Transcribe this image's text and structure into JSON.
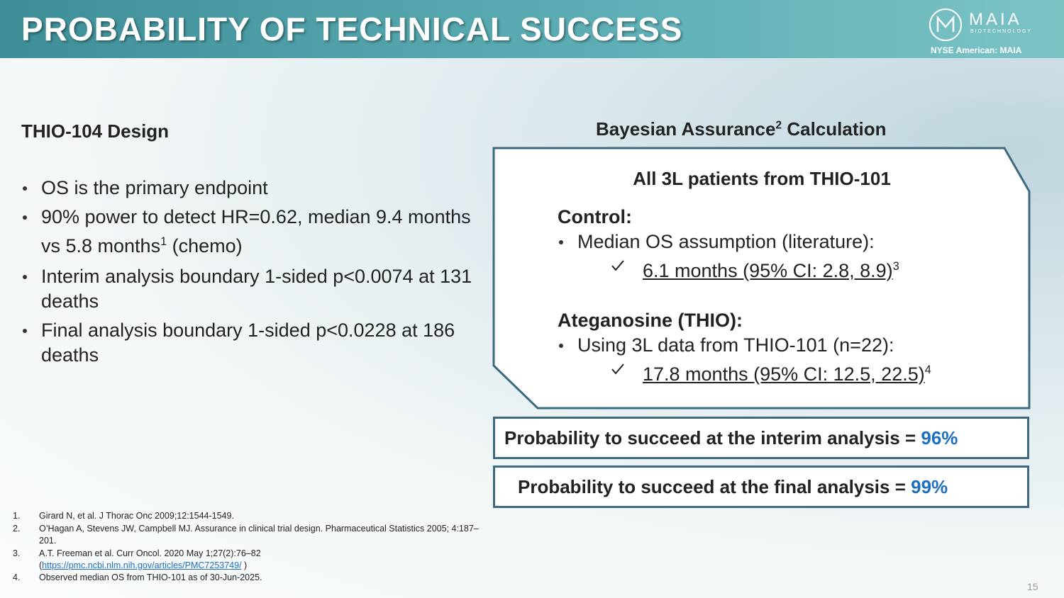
{
  "header": {
    "title": "PROBABILITY OF TECHNICAL SUCCESS",
    "logo_name": "MAIA",
    "logo_sub": "BIOTECHNOLOGY",
    "exchange": "NYSE American: MAIA"
  },
  "left": {
    "heading": "THIO-104 Design",
    "bullets": [
      [
        "OS is the primary endpoint"
      ],
      [
        "90% power to detect HR=0.62, median 9.4 months vs 5.8 months",
        "1",
        "(chemo)"
      ],
      [
        "Interim analysis boundary 1-sided p<0.0074 at 131 deaths"
      ],
      [
        "Final analysis boundary 1-sided p<0.0228 at 186 deaths"
      ]
    ]
  },
  "right": {
    "heading": [
      "Bayesian Assurance",
      "2",
      "Calculation"
    ],
    "box_title": "All 3L patients from THIO-101",
    "sections": [
      {
        "label": "Control:",
        "bullet": "Median OS assumption (literature):",
        "check": "6.1 months (95% CI:  2.8, 8.9)",
        "ref": "3"
      },
      {
        "label": "Ateganosine (THIO):",
        "bullet": "Using 3L data from THIO-101 (n=22):",
        "check": "17.8 months (95% CI: 12.5, 22.5)",
        "ref": "4"
      }
    ],
    "results": [
      {
        "text": "Probability to succeed at the interim analysis =",
        "value": "96%"
      },
      {
        "text": "Probability to succeed at the final analysis =",
        "value": "99%"
      }
    ]
  },
  "footnotes": [
    {
      "num": "1.",
      "lines": [
        "Girard N, et al. J Thorac Onc 2009;12:1544-1549."
      ]
    },
    {
      "num": "2.",
      "lines": [
        "O’Hagan A, Stevens JW, Campbell MJ. Assurance in clinical trial design. Pharmaceutical Statistics 2005; 4:187–201."
      ]
    },
    {
      "num": "3.",
      "lines": [
        "A.T. Freeman et al. Curr Oncol. 2020 May 1;27(2):76–82",
        "(",
        "https://pmc.ncbi.nlm.nih.gov/articles/PMC7253749/",
        ")"
      ]
    },
    {
      "num": "4.",
      "lines": [
        "Observed median OS from THIO-101 as of 30-Jun-2025."
      ]
    }
  ],
  "page_number": "15"
}
